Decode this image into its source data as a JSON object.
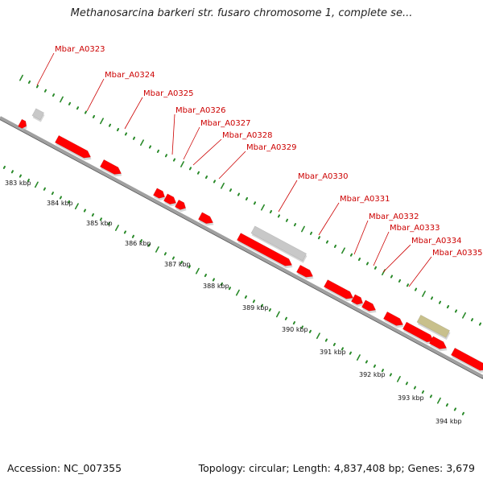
{
  "title": "Methanosarcina barkeri str. fusaro chromosome 1, complete se...",
  "accession_label": "Accession: NC_007355",
  "summary_label": "Topology: circular; Length: 4,837,408 bp; Genes: 3,679",
  "colors": {
    "gene_forward": "#ff0000",
    "gene_gray": "#c8c8c8",
    "gene_olive": "#c8c08c",
    "label": "#cc0000",
    "tick": "#2a8a2a",
    "backbone": "#a0a0a0"
  },
  "gene_labels": [
    "Mbar_A0323",
    "Mbar_A0324",
    "Mbar_A0325",
    "Mbar_A0326",
    "Mbar_A0327",
    "Mbar_A0328",
    "Mbar_A0329",
    "Mbar_A0330",
    "Mbar_A0331",
    "Mbar_A0332",
    "Mbar_A0333",
    "Mbar_A0334",
    "Mbar_A0335"
  ],
  "kbp_labels": [
    "383 kbp",
    "384 kbp",
    "385 kbp",
    "386 kbp",
    "387 kbp",
    "388 kbp",
    "389 kbp",
    "390 kbp",
    "391 kbp",
    "392 kbp",
    "393 kbp",
    "394 kbp"
  ]
}
